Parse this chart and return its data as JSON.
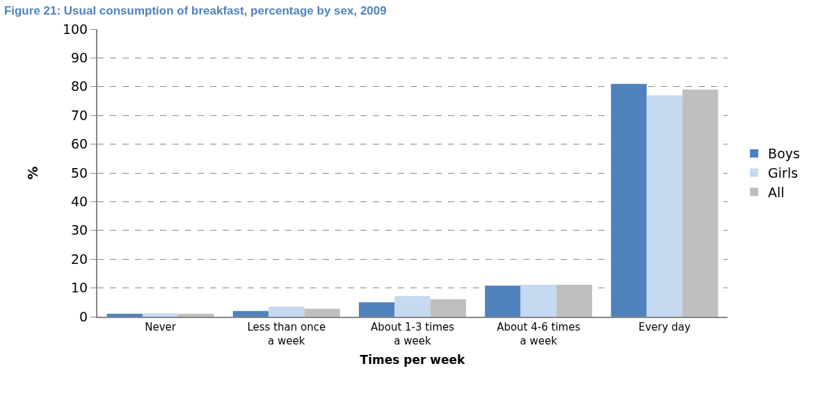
{
  "chart_data": {
    "type": "bar",
    "title": "Figure 21: Usual consumption of breakfast, percentage by sex, 2009",
    "xlabel": "Times per week",
    "ylabel": "%",
    "categories": [
      "Never",
      "Less than once a week",
      "About 1-3 times a week",
      "About 4-6 times a week",
      "Every day"
    ],
    "series": [
      {
        "name": "Boys",
        "color": "#4f81bd",
        "values": [
          1,
          2,
          5,
          10.8,
          81
        ]
      },
      {
        "name": "Girls",
        "color": "#c6d9f1",
        "values": [
          1.2,
          3.5,
          7.2,
          11.1,
          77
        ]
      },
      {
        "name": "All",
        "color": "#bfbfbf",
        "values": [
          1,
          2.8,
          6.1,
          11.1,
          79
        ]
      }
    ],
    "ylim": [
      0,
      100
    ],
    "yticks": [
      0,
      10,
      20,
      30,
      40,
      50,
      60,
      70,
      80,
      90,
      100
    ],
    "grid": "y",
    "legend": "right"
  }
}
